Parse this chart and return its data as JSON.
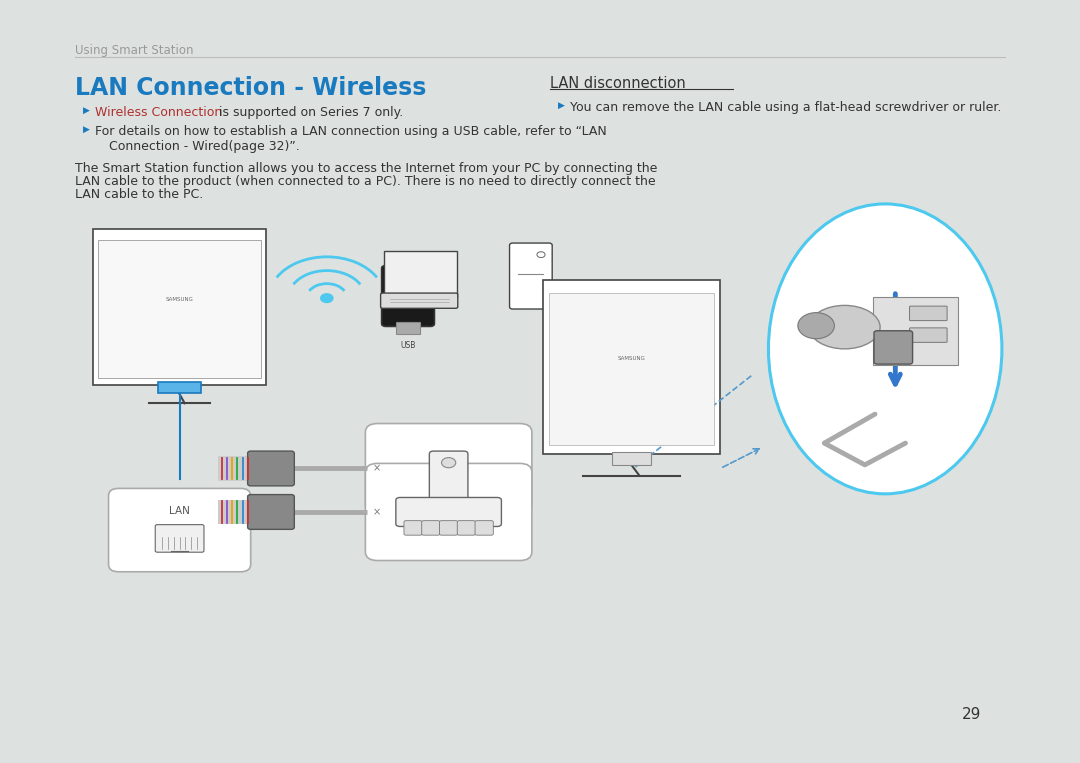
{
  "bg_color": "#dde2e0",
  "page_bg": "#ffffff",
  "header_text": "Using Smart Station",
  "header_color": "#999999",
  "title": "LAN Connection - Wireless",
  "title_color": "#1a7abf",
  "bullet_color": "#1a7abf",
  "bullet1_red": "Wireless Connection",
  "bullet1_red_color": "#b03030",
  "bullet1_rest": " is supported on Series 7 only.",
  "bullet2_line1": "For details on how to establish a LAN connection using a USB cable, refer to “LAN",
  "bullet2_line2": "Connection - Wired(page 32)”.",
  "body_text_line1": "The Smart Station function allows you to access the Internet from your PC by connecting the",
  "body_text_line2": "LAN cable to the product (when connected to a PC). There is no need to directly connect the",
  "body_text_line3": "LAN cable to the PC.",
  "right_section_title": "LAN disconnection",
  "right_bullet": "You can remove the LAN cable using a flat-head screwdriver or ruler.",
  "page_number": "29",
  "separator_color": "#bbbbbb",
  "text_color": "#333333",
  "body_font_size": 9.0,
  "title_font_size": 17.0,
  "header_font_size": 8.5
}
